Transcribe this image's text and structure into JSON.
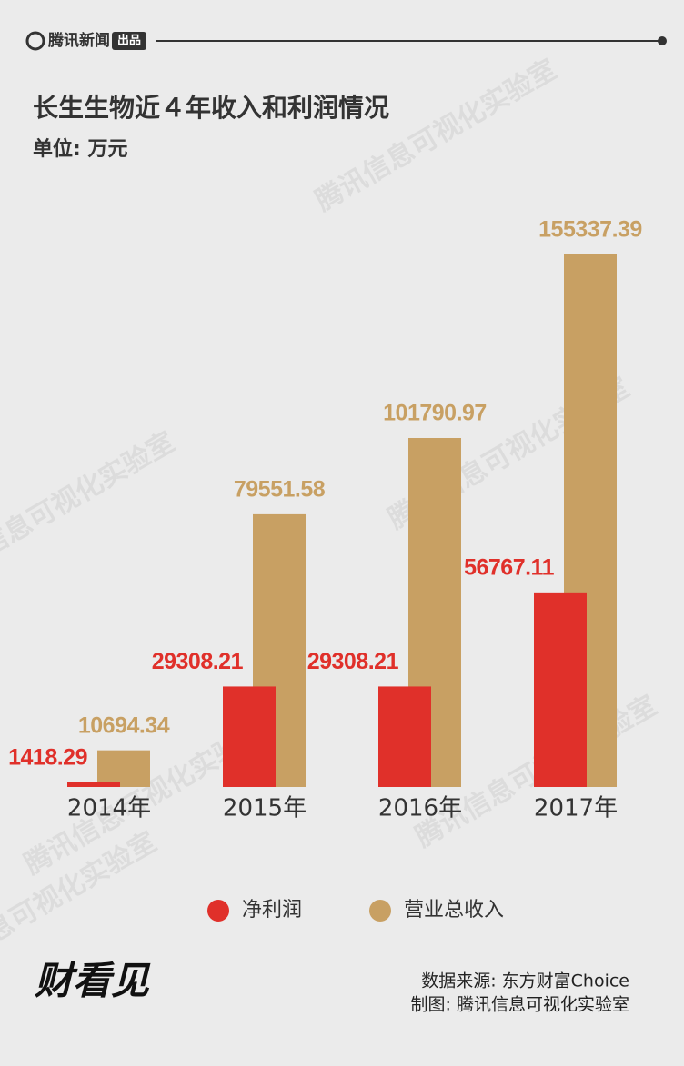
{
  "header": {
    "brand": "腾讯新闻",
    "badge": "出品"
  },
  "watermark": "腾讯信息可视化实验室",
  "chart_data": {
    "type": "bar",
    "title": "长生生物近４年收入和利润情况",
    "subtitle": "单位: 万元",
    "categories": [
      "2014年",
      "2015年",
      "2016年",
      "2017年"
    ],
    "series": [
      {
        "name": "净利润",
        "color": "#e0302a",
        "values": [
          1418.29,
          29308.21,
          29308.21,
          56767.11
        ]
      },
      {
        "name": "营业总收入",
        "color": "#c8a063",
        "values": [
          10694.34,
          79551.58,
          101790.97,
          155337.39
        ]
      }
    ]
  },
  "footer": {
    "logo": "财看见",
    "source": "数据来源: 东方财富Choice",
    "credit": "制图: 腾讯信息可视化实验室"
  }
}
